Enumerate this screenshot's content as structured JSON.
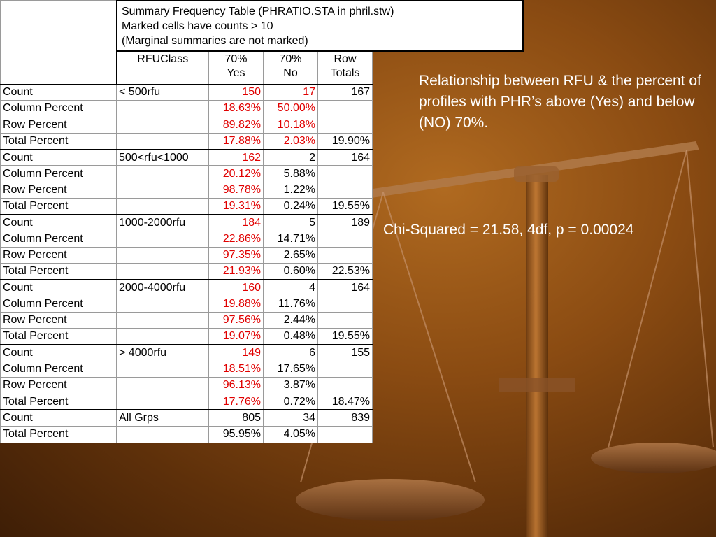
{
  "title_lines": [
    "Summary Frequency Table (PHRATIO.STA in phril.stw)",
    "Marked cells have counts > 10",
    "(Marginal summaries are not marked)"
  ],
  "header": {
    "rfu_class": "RFUClass",
    "yes_1": "70%",
    "yes_2": "Yes",
    "no_1": "70%",
    "no_2": "No",
    "tot_1": "Row",
    "tot_2": "Totals"
  },
  "rows": [
    {
      "label": "Count",
      "group": "< 500rfu",
      "yes": "150",
      "no": "17",
      "total": "167",
      "yes_red": true,
      "no_red": true,
      "first": true
    },
    {
      "label": "Column Percent",
      "group": "",
      "yes": "18.63%",
      "no": "50.00%",
      "total": "",
      "yes_red": true,
      "no_red": true
    },
    {
      "label": "Row Percent",
      "group": "",
      "yes": "89.82%",
      "no": "10.18%",
      "total": "",
      "yes_red": true,
      "no_red": true
    },
    {
      "label": "Total Percent",
      "group": "",
      "yes": "17.88%",
      "no": "2.03%",
      "total": "19.90%",
      "yes_red": true,
      "no_red": true
    },
    {
      "label": "Count",
      "group": "500<rfu<1000",
      "yes": "162",
      "no": "2",
      "total": "164",
      "yes_red": true,
      "no_red": false,
      "first": true
    },
    {
      "label": "Column Percent",
      "group": "",
      "yes": "20.12%",
      "no": "5.88%",
      "total": "",
      "yes_red": true,
      "no_red": false
    },
    {
      "label": "Row Percent",
      "group": "",
      "yes": "98.78%",
      "no": "1.22%",
      "total": "",
      "yes_red": true,
      "no_red": false
    },
    {
      "label": "Total Percent",
      "group": "",
      "yes": "19.31%",
      "no": "0.24%",
      "total": "19.55%",
      "yes_red": true,
      "no_red": false
    },
    {
      "label": "Count",
      "group": "1000-2000rfu",
      "yes": "184",
      "no": "5",
      "total": "189",
      "yes_red": true,
      "no_red": false,
      "first": true
    },
    {
      "label": "Column Percent",
      "group": "",
      "yes": "22.86%",
      "no": "14.71%",
      "total": "",
      "yes_red": true,
      "no_red": false
    },
    {
      "label": "Row Percent",
      "group": "",
      "yes": "97.35%",
      "no": "2.65%",
      "total": "",
      "yes_red": true,
      "no_red": false
    },
    {
      "label": "Total Percent",
      "group": "",
      "yes": "21.93%",
      "no": "0.60%",
      "total": "22.53%",
      "yes_red": true,
      "no_red": false
    },
    {
      "label": "Count",
      "group": "2000-4000rfu",
      "yes": "160",
      "no": "4",
      "total": "164",
      "yes_red": true,
      "no_red": false,
      "first": true
    },
    {
      "label": "Column Percent",
      "group": "",
      "yes": "19.88%",
      "no": "11.76%",
      "total": "",
      "yes_red": true,
      "no_red": false
    },
    {
      "label": "Row Percent",
      "group": "",
      "yes": "97.56%",
      "no": "2.44%",
      "total": "",
      "yes_red": true,
      "no_red": false
    },
    {
      "label": "Total Percent",
      "group": "",
      "yes": "19.07%",
      "no": "0.48%",
      "total": "19.55%",
      "yes_red": true,
      "no_red": false
    },
    {
      "label": "Count",
      "group": "> 4000rfu",
      "yes": "149",
      "no": "6",
      "total": "155",
      "yes_red": true,
      "no_red": false,
      "first": true
    },
    {
      "label": "Column Percent",
      "group": "",
      "yes": "18.51%",
      "no": "17.65%",
      "total": "",
      "yes_red": true,
      "no_red": false
    },
    {
      "label": "Row Percent",
      "group": "",
      "yes": "96.13%",
      "no": "3.87%",
      "total": "",
      "yes_red": true,
      "no_red": false
    },
    {
      "label": "Total Percent",
      "group": "",
      "yes": "17.76%",
      "no": "0.72%",
      "total": "18.47%",
      "yes_red": true,
      "no_red": false
    },
    {
      "label": "Count",
      "group": "All Grps",
      "yes": "805",
      "no": "34",
      "total": "839",
      "yes_red": false,
      "no_red": false,
      "first": true
    },
    {
      "label": "Total Percent",
      "group": "",
      "yes": "95.95%",
      "no": "4.05%",
      "total": "",
      "yes_red": false,
      "no_red": false
    }
  ],
  "annotation": "Relationship between RFU & the percent of profiles with PHR’s above (Yes) and below (NO) 70%.",
  "chi_squared": "Chi-Squared = 21.58, 4df, p = 0.00024",
  "colors": {
    "marked": "#e00000",
    "annotation_text": "#ffffff"
  },
  "icons": {
    "background": "balance-scale-icon"
  }
}
